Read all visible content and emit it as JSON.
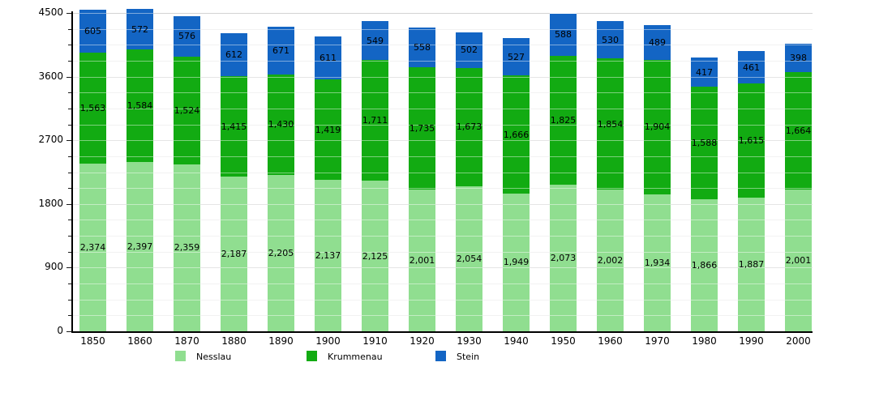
{
  "chart_data": {
    "type": "bar",
    "stacked": true,
    "title": "",
    "xlabel": "",
    "ylabel": "",
    "categories": [
      "1850",
      "1860",
      "1870",
      "1880",
      "1890",
      "1900",
      "1910",
      "1920",
      "1930",
      "1940",
      "1950",
      "1960",
      "1970",
      "1980",
      "1990",
      "2000"
    ],
    "series": [
      {
        "name": "Nesslau",
        "color": "#90DE90",
        "values": [
          2374,
          2397,
          2359,
          2187,
          2205,
          2137,
          2125,
          2001,
          2054,
          1949,
          2073,
          2002,
          1934,
          1866,
          1887,
          2001
        ]
      },
      {
        "name": "Krummenau",
        "color": "#12AB12",
        "values": [
          1563,
          1584,
          1524,
          1415,
          1430,
          1419,
          1711,
          1735,
          1673,
          1666,
          1825,
          1854,
          1904,
          1588,
          1615,
          1664
        ]
      },
      {
        "name": "Stein",
        "color": "#1365C4",
        "values": [
          605,
          572,
          576,
          612,
          671,
          611,
          549,
          558,
          502,
          527,
          588,
          530,
          489,
          417,
          461,
          398
        ]
      }
    ],
    "ylim": [
      0,
      4500
    ],
    "y_major_ticks": [
      0,
      900,
      1800,
      2700,
      3600,
      4500
    ],
    "y_minor_step": 225,
    "grid": true,
    "legend_position": "bottom",
    "legend_entries": [
      "Nesslau",
      "Krummenau",
      "Stein"
    ],
    "value_label_format": "thousands-comma",
    "colors": {
      "background": "#ffffff",
      "axis": "#000000",
      "major_grid": "#cfcfcf",
      "minor_grid": "#e7e7e7",
      "top_border": "#b0b0b0",
      "segment_divider": "#ffffff",
      "label_text": "#000000"
    }
  }
}
